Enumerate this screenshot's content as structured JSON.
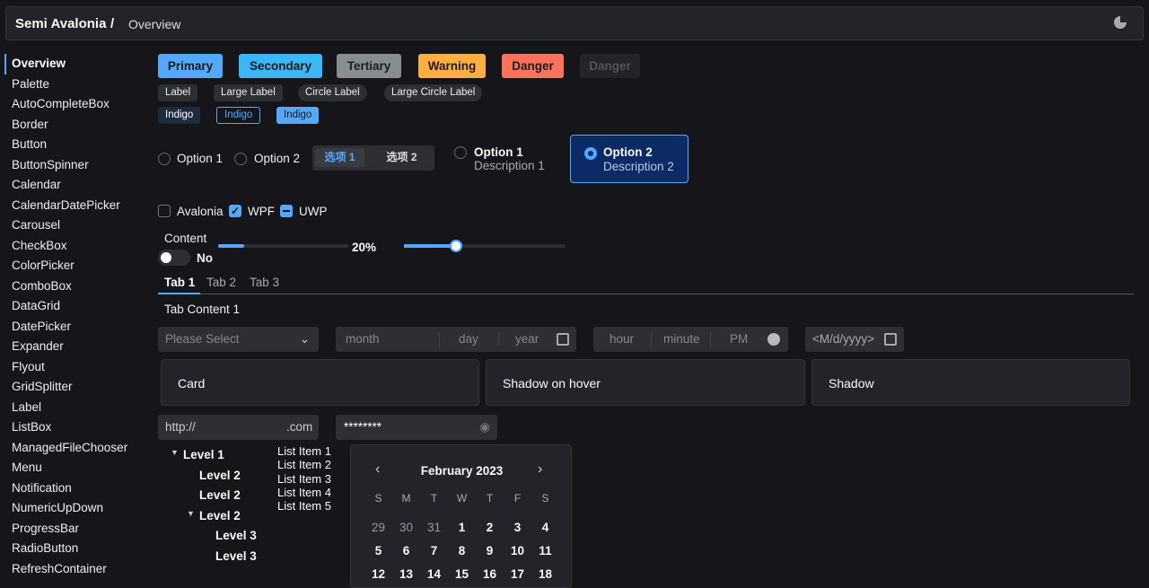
{
  "header": {
    "brand": "Semi Avalonia",
    "separator": "/",
    "crumb": "Overview",
    "theme_icon": "theme-toggle-icon"
  },
  "sidebar": {
    "items": [
      "Overview",
      "Palette",
      "AutoCompleteBox",
      "Border",
      "Button",
      "ButtonSpinner",
      "Calendar",
      "CalendarDatePicker",
      "Carousel",
      "CheckBox",
      "ColorPicker",
      "ComboBox",
      "DataGrid",
      "DatePicker",
      "Expander",
      "Flyout",
      "GridSplitter",
      "Label",
      "ListBox",
      "ManagedFileChooser",
      "Menu",
      "Notification",
      "NumericUpDown",
      "ProgressBar",
      "RadioButton",
      "RefreshContainer"
    ]
  },
  "buttons": [
    {
      "label": "Primary",
      "color": "#54a9ff"
    },
    {
      "label": "Secondary",
      "color": "#3bb7f5"
    },
    {
      "label": "Tertiary",
      "color": "#888d92"
    },
    {
      "label": "Warning",
      "color": "#ffae43"
    },
    {
      "label": "Danger",
      "color": "#fc725a"
    },
    {
      "label": "Danger",
      "color": "#232429"
    }
  ],
  "labels": [
    "Label",
    "Large Label",
    "Circle Label",
    "Large Circle Label"
  ],
  "indigo": [
    "Indigo",
    "Indigo",
    "Indigo"
  ],
  "radios": {
    "opt1": "Option 1",
    "opt2": "Option 2",
    "seg1": "选项 1",
    "seg2": "选项 2",
    "card1": {
      "title": "Option 1",
      "desc": "Description 1"
    },
    "card2": {
      "title": "Option 2",
      "desc": "Description 2"
    }
  },
  "checkboxes": [
    {
      "label": "Avalonia",
      "state": "unchecked"
    },
    {
      "label": "WPF",
      "state": "checked"
    },
    {
      "label": "UWP",
      "state": "indeterminate"
    }
  ],
  "toggle": {
    "header": "Content",
    "text": "No",
    "on": false
  },
  "progress": {
    "value": 20,
    "text": "20%"
  },
  "slider": {
    "value": 32
  },
  "tabs": {
    "items": [
      "Tab 1",
      "Tab 2",
      "Tab 3"
    ],
    "content": "Tab Content 1"
  },
  "combo": {
    "placeholder": "Please Select"
  },
  "date": {
    "month": "month",
    "day": "day",
    "year": "year"
  },
  "time": {
    "hour": "hour",
    "minute": "minute",
    "ampm": "PM"
  },
  "datepicker": {
    "placeholder": "<M/d/yyyy>"
  },
  "cards": [
    "Card",
    "Shadow on hover",
    "Shadow"
  ],
  "url": {
    "prefix": "http://",
    "suffix": ".com"
  },
  "password": {
    "value": "********"
  },
  "tree": [
    {
      "t": "Level 1"
    },
    {
      "t": "Level 2"
    },
    {
      "t": "Level 2"
    },
    {
      "t": "Level 2"
    },
    {
      "t": "Level 3"
    },
    {
      "t": "Level 3"
    }
  ],
  "list": [
    "List Item 1",
    "List Item 2",
    "List Item 3",
    "List Item 4",
    "List Item 5"
  ],
  "calendar": {
    "title": "February 2023",
    "weekdays": [
      "S",
      "M",
      "T",
      "W",
      "T",
      "F",
      "S"
    ],
    "rows": [
      [
        "29",
        "30",
        "31",
        "1",
        "2",
        "3",
        "4"
      ],
      [
        "5",
        "6",
        "7",
        "8",
        "9",
        "10",
        "11"
      ],
      [
        "12",
        "13",
        "14",
        "15",
        "16",
        "17",
        "18"
      ]
    ]
  }
}
